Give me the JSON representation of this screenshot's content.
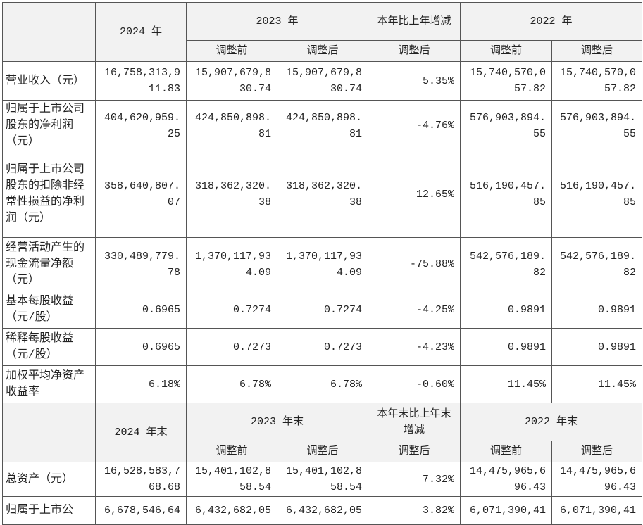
{
  "table": {
    "sections": [
      {
        "columns_top": [
          "2024 年",
          "2023 年",
          "本年比上年增减",
          "2022 年"
        ],
        "columns_sub": [
          "调整前",
          "调整后",
          "调整后",
          "调整前",
          "调整后"
        ],
        "rows": [
          [
            "营业收入（元）",
            "16,758,313,911.83",
            "15,907,679,830.74",
            "15,907,679,830.74",
            "5.35%",
            "15,740,570,057.82",
            "15,740,570,057.82"
          ],
          [
            "归属于上市公司股东的净利润（元）",
            "404,620,959.25",
            "424,850,898.81",
            "424,850,898.81",
            "-4.76%",
            "576,903,894.55",
            "576,903,894.55"
          ],
          [
            "归属于上市公司股东的扣除非经常性损益的净利润（元）",
            "358,640,807.07",
            "318,362,320.38",
            "318,362,320.38",
            "12.65%",
            "516,190,457.85",
            "516,190,457.85"
          ],
          [
            "经营活动产生的现金流量净额（元）",
            "330,489,779.78",
            "1,370,117,934.09",
            "1,370,117,934.09",
            "-75.88%",
            "542,576,189.82",
            "542,576,189.82"
          ],
          [
            "基本每股收益（元/股）",
            "0.6965",
            "0.7274",
            "0.7274",
            "-4.25%",
            "0.9891",
            "0.9891"
          ],
          [
            "稀释每股收益（元/股）",
            "0.6965",
            "0.7273",
            "0.7273",
            "-4.23%",
            "0.9891",
            "0.9891"
          ],
          [
            "加权平均净资产收益率",
            "6.18%",
            "6.78%",
            "6.78%",
            "-0.60%",
            "11.45%",
            "11.45%"
          ]
        ]
      },
      {
        "columns_top": [
          "2024 年末",
          "2023 年末",
          "本年末比上年末增减",
          "2022 年末"
        ],
        "columns_sub": [
          "调整前",
          "调整后",
          "调整后",
          "调整前",
          "调整后"
        ],
        "rows": [
          [
            "总资产（元）",
            "16,528,583,768.68",
            "15,401,102,858.54",
            "15,401,102,858.54",
            "7.32%",
            "14,475,965,696.43",
            "14,475,965,696.43"
          ],
          [
            "归属于上市公",
            "6,678,546,64",
            "6,432,682,05",
            "6,432,682,05",
            "3.82%",
            "6,071,390,41",
            "6,071,390,41"
          ]
        ]
      }
    ]
  }
}
